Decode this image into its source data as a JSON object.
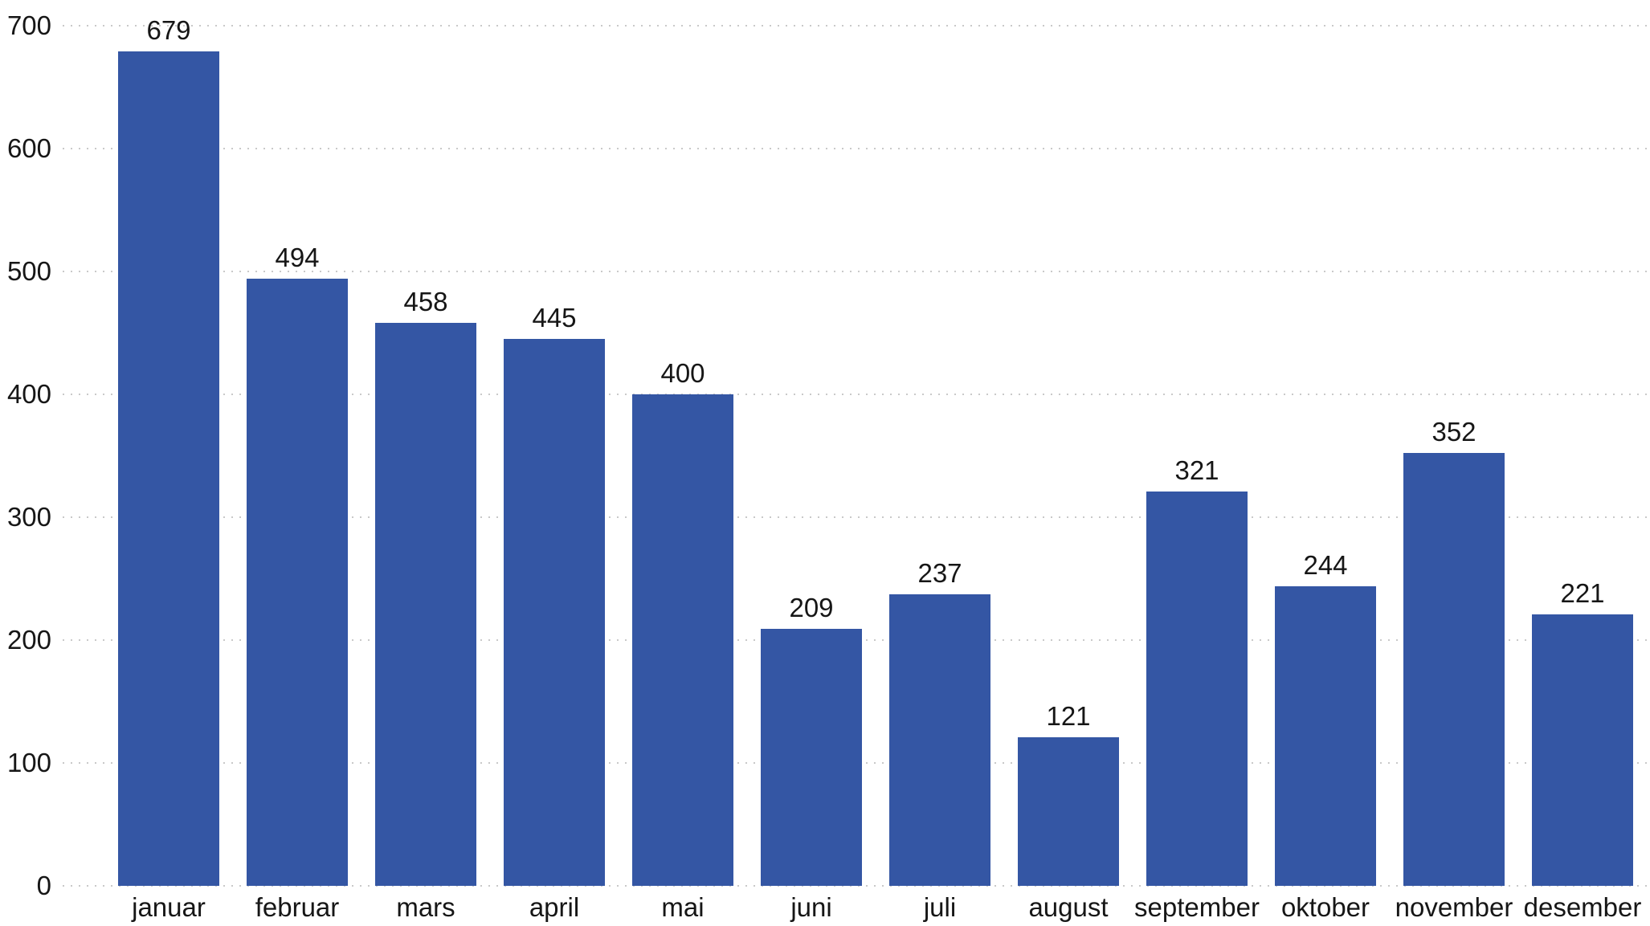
{
  "chart_data": {
    "type": "bar",
    "categories": [
      "januar",
      "februar",
      "mars",
      "april",
      "mai",
      "juni",
      "juli",
      "august",
      "september",
      "oktober",
      "november",
      "desember"
    ],
    "values": [
      679,
      494,
      458,
      445,
      400,
      209,
      237,
      121,
      321,
      244,
      352,
      221
    ],
    "title": "",
    "xlabel": "",
    "ylabel": "",
    "ylim": [
      0,
      700
    ],
    "yticks": [
      0,
      100,
      200,
      300,
      400,
      500,
      600,
      700
    ],
    "grid": "horizontal-dotted",
    "legend_position": "none",
    "value_labels_position": "above-bars",
    "colors": {
      "bar": "#3456a4",
      "grid": "#c9c9c9",
      "text": "#161616",
      "background": "#ffffff"
    }
  }
}
